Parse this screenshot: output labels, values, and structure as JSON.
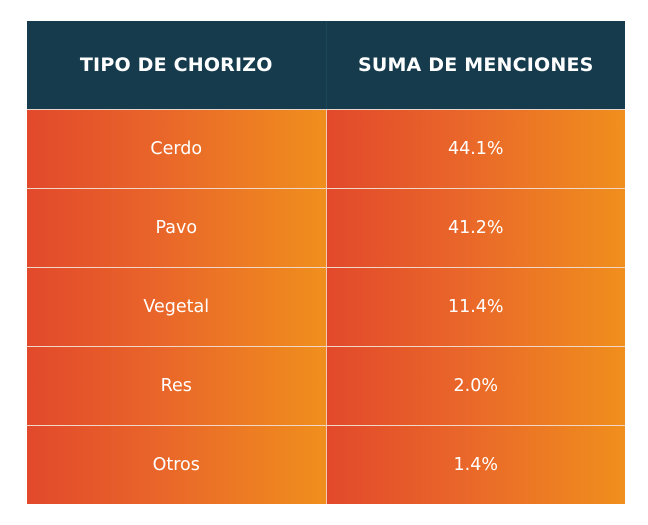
{
  "chart_data": {
    "type": "table",
    "columns": [
      "TIPO DE CHORIZO",
      "SUMA DE MENCIONES"
    ],
    "rows": [
      [
        "Cerdo",
        "44.1%"
      ],
      [
        "Pavo",
        "41.2%"
      ],
      [
        "Vegetal",
        "11.4%"
      ],
      [
        "Res",
        "2.0%"
      ],
      [
        "Otros",
        "1.4%"
      ]
    ],
    "categories": [
      "Cerdo",
      "Pavo",
      "Vegetal",
      "Res",
      "Otros"
    ],
    "values": [
      44.1,
      41.2,
      11.4,
      2.0,
      1.4
    ]
  },
  "colors": {
    "header_background": "#163b4d",
    "header_text": "#ffffff",
    "cell_gradient_start": "#e2492b",
    "cell_gradient_end": "#f08f1d",
    "cell_text": "#ffffff"
  }
}
